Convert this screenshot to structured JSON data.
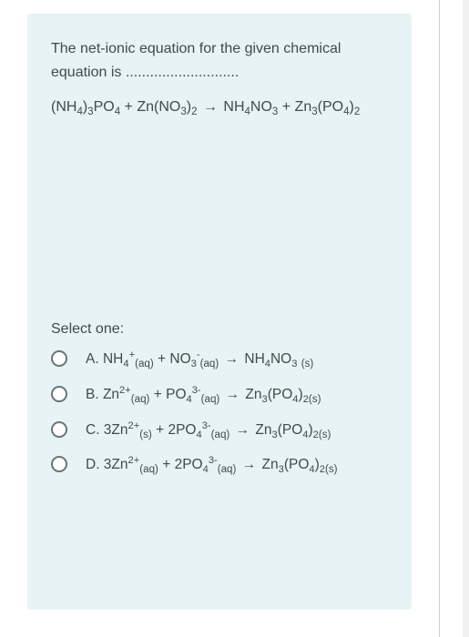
{
  "colors": {
    "card_bg": "#e7f3f5",
    "text": "#424a4d",
    "radio_border": "#6b7478",
    "divider": "#d0d0d0",
    "page_bg": "#ffffff"
  },
  "question": {
    "prompt_text": "The net-ionic equation for the given chemical equation is ............................",
    "equation_html": "(NH<sub>4</sub>)<sub>3</sub>PO<sub>4</sub> + Zn(NO<sub>3</sub>)<sub>2</sub> <span class=\"arrow\">→</span> NH<sub>4</sub>NO<sub>3</sub> + Zn<sub>3</sub>(PO<sub>4</sub>)<sub>2</sub>"
  },
  "select_label": "Select one:",
  "options": [
    {
      "key": "A",
      "html": "A. NH<sub>4</sub><sup>+</sup><span class=\"state\">(aq)</span> + NO<sub>3</sub><sup>-</sup><span class=\"state\">(aq)</span> <span class=\"arrow\">→</span> NH<sub>4</sub>NO<sub>3</sub> <span class=\"state\">(s)</span>"
    },
    {
      "key": "B",
      "html": "B. Zn<sup>2+</sup><span class=\"state\">(aq)</span> + PO<sub>4</sub><sup>3-</sup><span class=\"state\">(aq)</span> <span class=\"arrow\">→</span> Zn<sub>3</sub>(PO<sub>4</sub>)<sub>2</sub><span class=\"state\">(s)</span>"
    },
    {
      "key": "C",
      "html": "C. 3Zn<sup>2+</sup><span class=\"state\">(s)</span> + 2PO<sub>4</sub><sup>3-</sup><span class=\"state\">(aq)</span> <span class=\"arrow\">→</span> Zn<sub>3</sub>(PO<sub>4</sub>)<sub>2</sub><span class=\"state\">(s)</span>"
    },
    {
      "key": "D",
      "html": "D. 3Zn<sup>2+</sup><span class=\"state\">(aq)</span> + 2PO<sub>4</sub><sup>3-</sup><span class=\"state\">(aq)</span> <span class=\"arrow\">→</span> Zn<sub>3</sub>(PO<sub>4</sub>)<sub>2</sub><span class=\"state\">(s)</span>"
    }
  ]
}
